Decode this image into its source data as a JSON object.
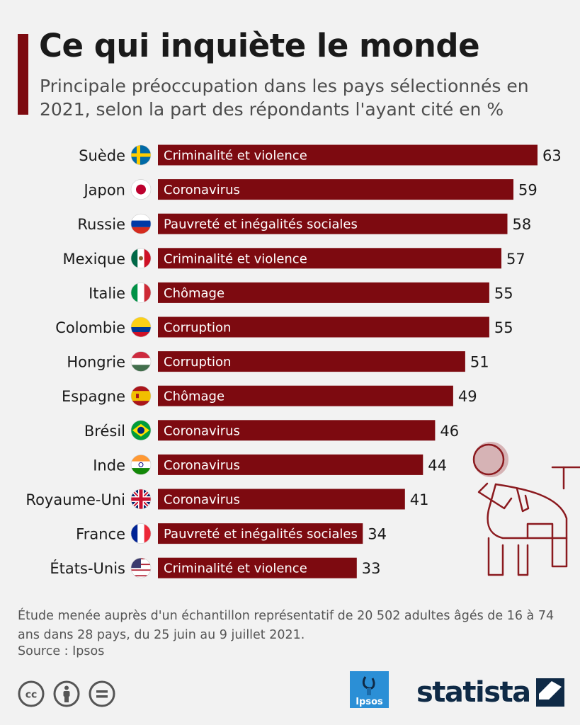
{
  "title": "Ce qui inquiète le monde",
  "subtitle": "Principale préoccupation dans les pays sélectionnés en 2021, selon la part des répondants l'ayant cité en %",
  "colors": {
    "accent": "#7d0a10",
    "bar": "#7d0a10",
    "navy": "#0f2a46",
    "ipsos_blue": "#2b8fd6"
  },
  "chart_data": {
    "type": "bar",
    "orientation": "horizontal",
    "categories": [
      "Suède",
      "Japon",
      "Russie",
      "Mexique",
      "Italie",
      "Colombie",
      "Hongrie",
      "Espagne",
      "Brésil",
      "Inde",
      "Royaume-Uni",
      "France",
      "États-Unis"
    ],
    "values": [
      63,
      59,
      58,
      57,
      55,
      55,
      51,
      49,
      46,
      44,
      41,
      34,
      33
    ],
    "bar_labels": [
      "Criminalité et violence",
      "Coronavirus",
      "Pauvreté et inégalités sociales",
      "Criminalité et violence",
      "Chômage",
      "Corruption",
      "Corruption",
      "Chômage",
      "Coronavirus",
      "Coronavirus",
      "Coronavirus",
      "Pauvreté et inégalités sociales",
      "Criminalité et violence"
    ],
    "flags": [
      "sweden-flag-icon",
      "japan-flag-icon",
      "russia-flag-icon",
      "mexico-flag-icon",
      "italy-flag-icon",
      "colombia-flag-icon",
      "hungary-flag-icon",
      "spain-flag-icon",
      "brazil-flag-icon",
      "india-flag-icon",
      "uk-flag-icon",
      "france-flag-icon",
      "usa-flag-icon"
    ],
    "xlim": [
      0,
      63
    ],
    "grid": false,
    "legend": "none"
  },
  "footnote": "Étude menée auprès d'un échantillon représentatif de 20 502 adultes âgés de 16 à 74 ans dans 28 pays, du 25 juin au 9 juillet 2021.",
  "source": "Source : Ipsos",
  "logos": {
    "ipsos": "Ipsos",
    "statista": "statista"
  },
  "icons": [
    "cc-icon",
    "attribution-icon",
    "no-derivatives-icon",
    "worried-person-illustration"
  ]
}
